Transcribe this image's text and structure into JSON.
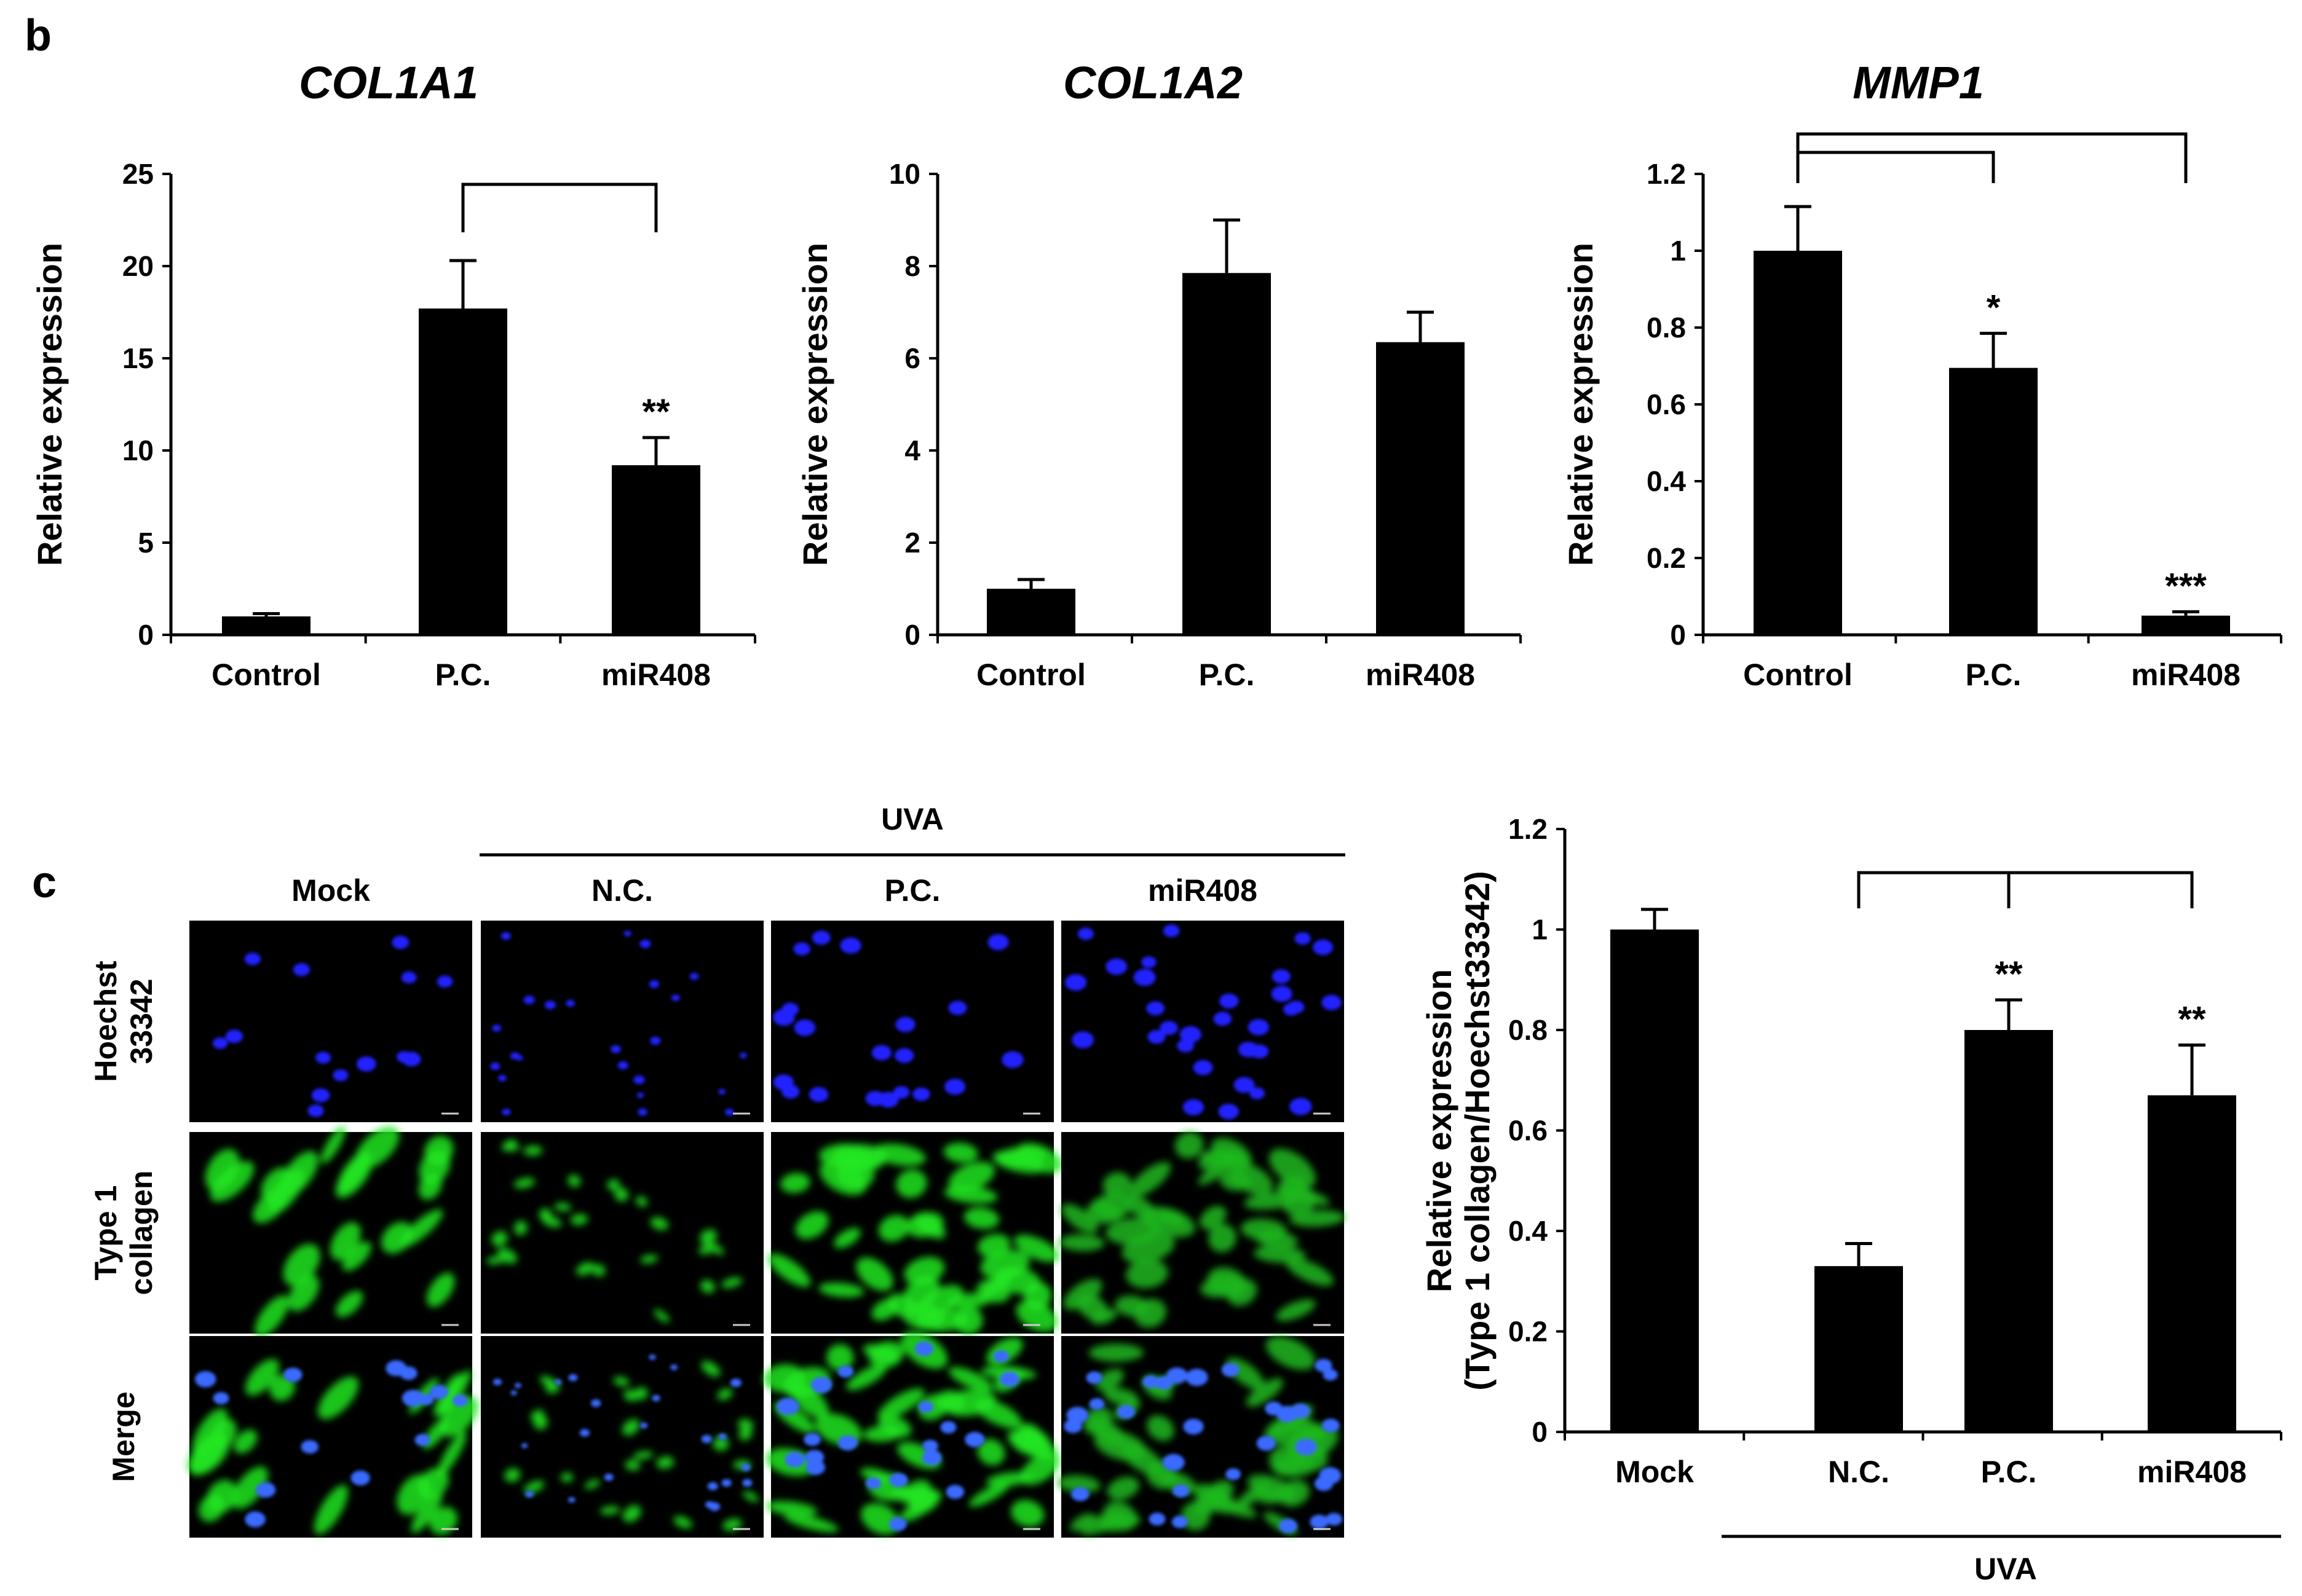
{
  "panel_b": {
    "label": "b"
  },
  "panel_c": {
    "label": "c",
    "uva_label": "UVA",
    "microscopy": {
      "columns": [
        "Mock",
        "N.C.",
        "P.C.",
        "miR408"
      ],
      "rows": [
        {
          "label_lines": [
            "Hoechst",
            "33342"
          ],
          "stain": "nuclei",
          "color": "#2020ff"
        },
        {
          "label_lines": [
            "Type 1",
            "collagen"
          ],
          "stain": "collagen",
          "color": "#22e622"
        },
        {
          "label_lines": [
            "Merge"
          ],
          "stain": "merge",
          "color": "#22e622"
        }
      ]
    }
  },
  "colors": {
    "bar": "#000000",
    "background": "#ffffff"
  },
  "chart_data": [
    {
      "type": "bar",
      "title": "COL1A1",
      "ylabel": "Relative expression",
      "categories": [
        "Control",
        "P.C.",
        "miR408"
      ],
      "values": [
        1.0,
        17.7,
        9.2
      ],
      "errors": [
        0.15,
        2.6,
        1.5
      ],
      "ylim": [
        0,
        25
      ],
      "yticks": [
        "0",
        "5",
        "10",
        "15",
        "20",
        "25"
      ],
      "significance": [
        "",
        "",
        "**"
      ],
      "comparisons": [
        [
          1,
          2
        ]
      ]
    },
    {
      "type": "bar",
      "title": "COL1A2",
      "ylabel": "Relative expression",
      "categories": [
        "Control",
        "P.C.",
        "miR408"
      ],
      "values": [
        1.0,
        7.85,
        6.35
      ],
      "errors": [
        0.2,
        1.15,
        0.65
      ],
      "ylim": [
        0,
        10
      ],
      "yticks": [
        "0",
        "2",
        "4",
        "6",
        "8",
        "10"
      ],
      "significance": [
        "",
        "",
        ""
      ],
      "comparisons": []
    },
    {
      "type": "bar",
      "title": "MMP1",
      "ylabel": "Relative expression",
      "categories": [
        "Control",
        "P.C.",
        "miR408"
      ],
      "values": [
        1.0,
        0.695,
        0.05
      ],
      "errors": [
        0.115,
        0.09,
        0.01
      ],
      "ylim": [
        0,
        1.2
      ],
      "yticks": [
        "0",
        "0.2",
        "0.4",
        "0.6",
        "0.8",
        "1",
        "1.2"
      ],
      "significance": [
        "",
        "*",
        "***"
      ],
      "comparisons": [
        [
          0,
          1
        ],
        [
          0,
          2
        ]
      ]
    },
    {
      "type": "bar",
      "ylabel_lines": [
        "Relative expression",
        "(Type 1 collagen/Hoechst33342)"
      ],
      "categories": [
        "Mock",
        "N.C.",
        "P.C.",
        "miR408"
      ],
      "values": [
        1.0,
        0.33,
        0.8,
        0.67
      ],
      "errors": [
        0.04,
        0.045,
        0.06,
        0.1
      ],
      "ylim": [
        0,
        1.2
      ],
      "yticks": [
        "0",
        "0.2",
        "0.4",
        "0.6",
        "0.8",
        "1",
        "1.2"
      ],
      "significance": [
        "",
        "",
        "**",
        "**"
      ],
      "comparisons": [
        [
          1,
          2
        ],
        [
          1,
          3
        ]
      ],
      "group_label": "UVA"
    }
  ]
}
